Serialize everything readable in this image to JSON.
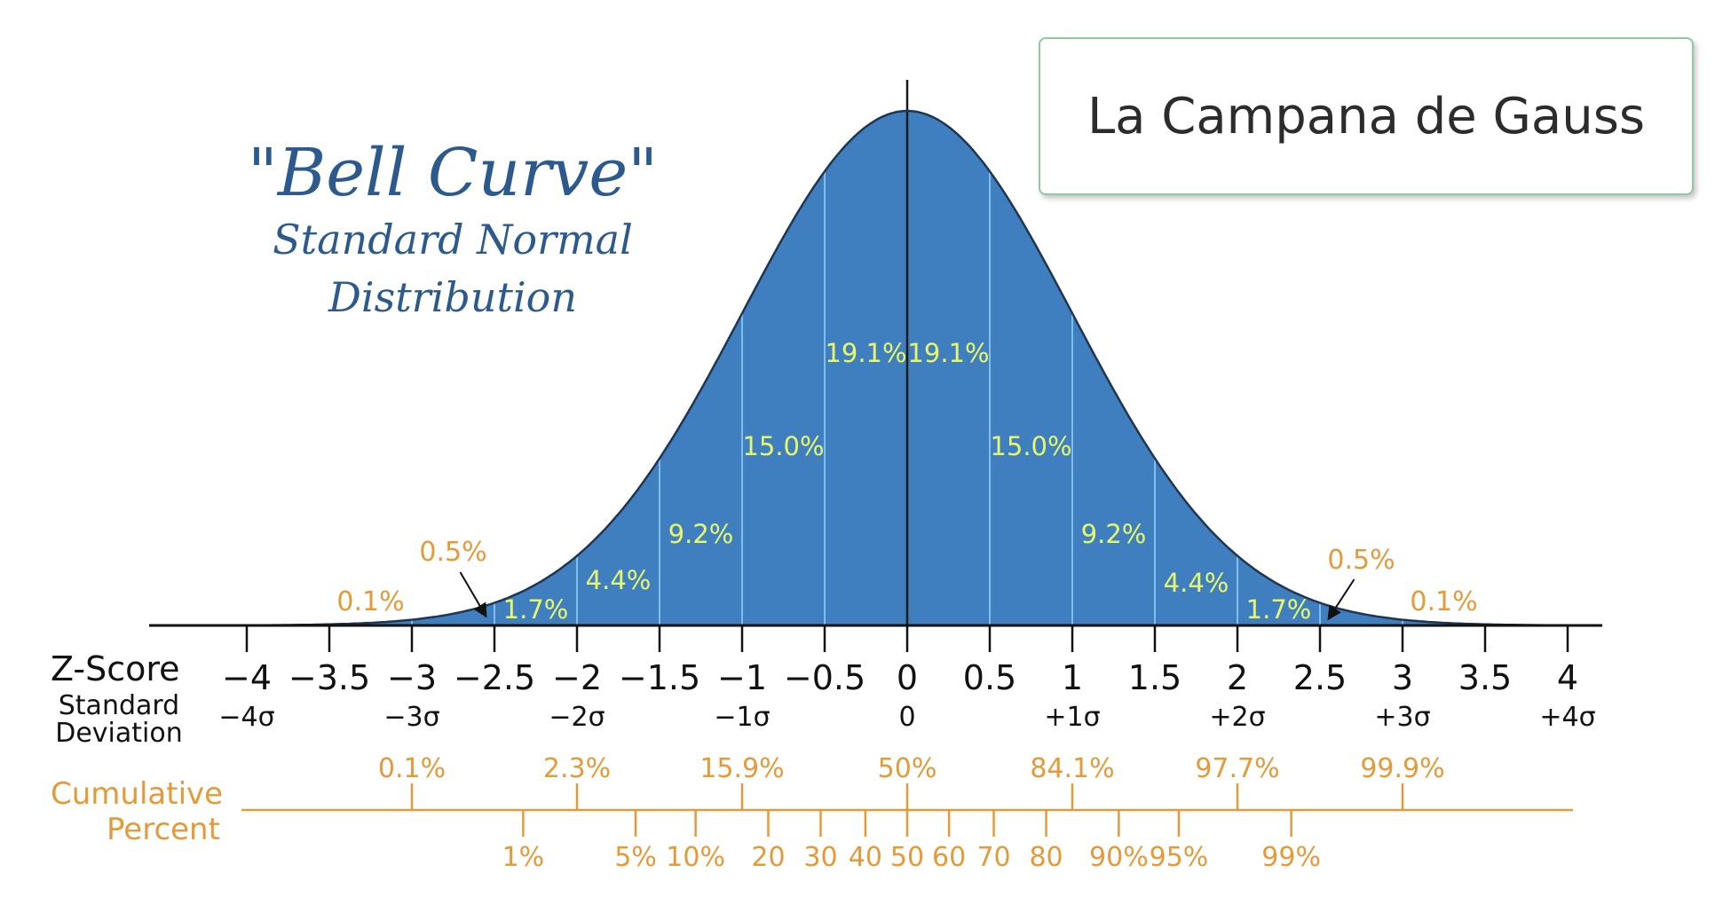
{
  "title_box": {
    "text": "La Campana de Gauss"
  },
  "heading": {
    "line1": "\"Bell Curve\"",
    "line2": "Standard Normal",
    "line3": "Distribution"
  },
  "labels": {
    "zscore": "Z-Score",
    "stddev_line1": "Standard",
    "stddev_line2": "Deviation",
    "cum_line1": "Cumulative",
    "cum_line2": "Percent"
  },
  "colors": {
    "fill": "#3f7fbf",
    "curve_stroke": "#1f3550",
    "divider": "#7fbff0",
    "percent_text": "#e8f76a",
    "orange": "#e59a3a"
  },
  "chart_data": {
    "type": "area",
    "xlim": [
      -4,
      4
    ],
    "x_ticks": [
      "−4",
      "−3.5",
      "−3",
      "−2.5",
      "−2",
      "−1.5",
      "−1",
      "−0.5",
      "0",
      "0.5",
      "1",
      "1.5",
      "2",
      "2.5",
      "3",
      "3.5",
      "4"
    ],
    "sigma_labels": [
      {
        "z": -4,
        "label": "−4σ"
      },
      {
        "z": -3,
        "label": "−3σ"
      },
      {
        "z": -2,
        "label": "−2σ"
      },
      {
        "z": -1,
        "label": "−1σ"
      },
      {
        "z": 0,
        "label": "0"
      },
      {
        "z": 1,
        "label": "+1σ"
      },
      {
        "z": 2,
        "label": "+2σ"
      },
      {
        "z": 3,
        "label": "+3σ"
      },
      {
        "z": 4,
        "label": "+4σ"
      }
    ],
    "area_labels": [
      {
        "z": -0.25,
        "label": "19.1%"
      },
      {
        "z": 0.25,
        "label": "19.1%"
      },
      {
        "z": -0.75,
        "label": "15.0%"
      },
      {
        "z": 0.75,
        "label": "15.0%"
      },
      {
        "z": -1.25,
        "label": "9.2%"
      },
      {
        "z": 1.25,
        "label": "9.2%"
      },
      {
        "z": -1.75,
        "label": "4.4%"
      },
      {
        "z": 1.75,
        "label": "4.4%"
      },
      {
        "z": -2.25,
        "label": "1.7%"
      },
      {
        "z": 2.25,
        "label": "1.7%"
      },
      {
        "z": -2.75,
        "label": "0.5%"
      },
      {
        "z": 2.75,
        "label": "0.5%"
      },
      {
        "z": -3.25,
        "label": "0.1%"
      },
      {
        "z": 3.25,
        "label": "0.1%"
      }
    ],
    "cumulative_upper": [
      {
        "z": -3,
        "label": "0.1%"
      },
      {
        "z": -2,
        "label": "2.3%"
      },
      {
        "z": -1,
        "label": "15.9%"
      },
      {
        "z": 0,
        "label": "50%"
      },
      {
        "z": 1,
        "label": "84.1%"
      },
      {
        "z": 2,
        "label": "97.7%"
      },
      {
        "z": 3,
        "label": "99.9%"
      }
    ],
    "cumulative_lower": [
      {
        "z": -2.326,
        "label": "1%"
      },
      {
        "z": -1.645,
        "label": "5%"
      },
      {
        "z": -1.2816,
        "label": "10%"
      },
      {
        "z": -0.8416,
        "label": "20"
      },
      {
        "z": -0.5244,
        "label": "30"
      },
      {
        "z": -0.2533,
        "label": "40"
      },
      {
        "z": 0,
        "label": "50"
      },
      {
        "z": 0.2533,
        "label": "60"
      },
      {
        "z": 0.5244,
        "label": "70"
      },
      {
        "z": 0.8416,
        "label": "80"
      },
      {
        "z": 1.2816,
        "label": "90%"
      },
      {
        "z": 1.645,
        "label": "95%"
      },
      {
        "z": 2.326,
        "label": "99%"
      }
    ]
  }
}
